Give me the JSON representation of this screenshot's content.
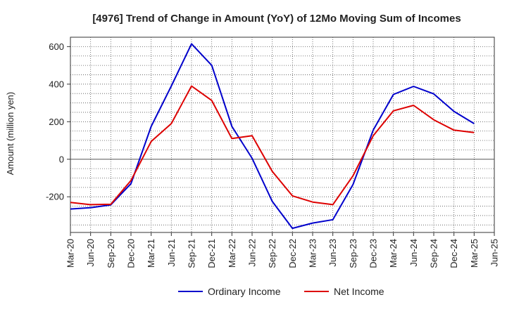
{
  "chart_data": {
    "type": "line",
    "title": "[4976]  Trend of Change in Amount (YoY) of 12Mo Moving Sum of Incomes",
    "xlabel": "",
    "ylabel": "Amount (million yen)",
    "ylim": [
      -390,
      650
    ],
    "yticks": [
      -200,
      0,
      200,
      400,
      600
    ],
    "grid": true,
    "legend_position": "bottom",
    "categories": [
      "Mar-20",
      "Jun-20",
      "Sep-20",
      "Dec-20",
      "Mar-21",
      "Jun-21",
      "Sep-21",
      "Dec-21",
      "Mar-22",
      "Jun-22",
      "Sep-22",
      "Dec-22",
      "Mar-23",
      "Jun-23",
      "Sep-23",
      "Dec-23",
      "Mar-24",
      "Jun-24",
      "Sep-24",
      "Dec-24",
      "Mar-25",
      "Jun-25"
    ],
    "series": [
      {
        "name": "Ordinary Income",
        "color": "#0000cc",
        "values": [
          -265,
          -258,
          -243,
          -130,
          175,
          390,
          615,
          500,
          175,
          5,
          -225,
          -368,
          -340,
          -322,
          -135,
          155,
          345,
          388,
          348,
          255,
          190,
          null
        ]
      },
      {
        "name": "Net Income",
        "color": "#dd0000",
        "values": [
          -230,
          -242,
          -240,
          -113,
          95,
          190,
          390,
          313,
          110,
          125,
          -65,
          -195,
          -228,
          -242,
          -88,
          125,
          258,
          287,
          210,
          155,
          142,
          null
        ]
      }
    ]
  }
}
